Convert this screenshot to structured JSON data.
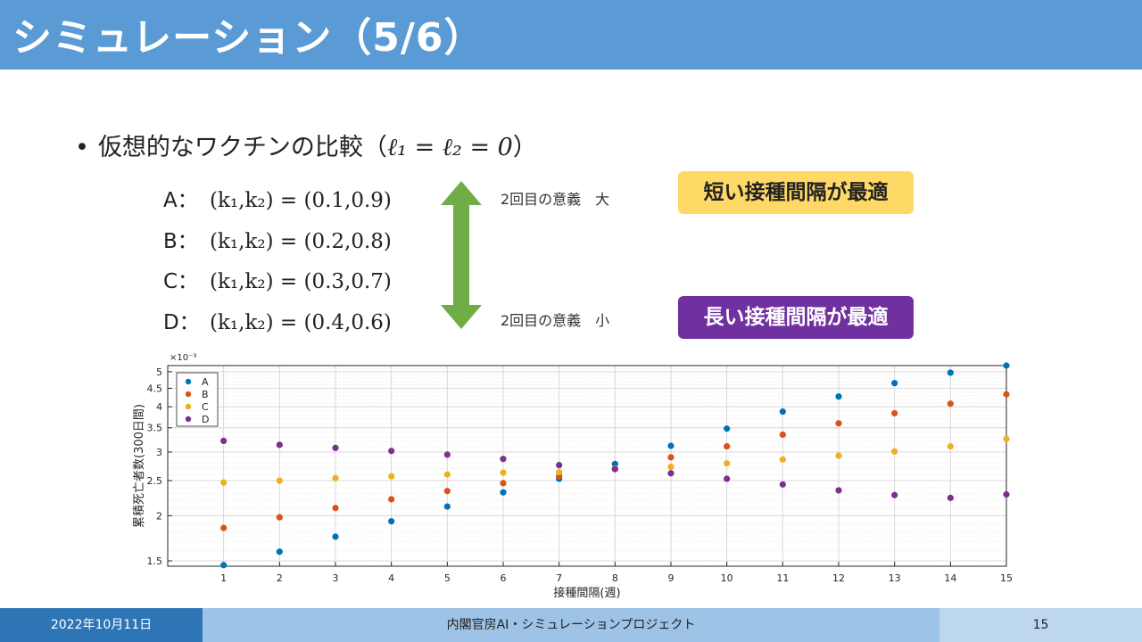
{
  "header": {
    "title": "シミュレーション（5/6）"
  },
  "main": {
    "bullet": {
      "text": "仮想的なワクチンの比較（",
      "math": "ℓ₁ = ℓ₂ = 0",
      "close": "）"
    },
    "vaccines": [
      {
        "label": "A：",
        "equation": "(k₁,k₂) = (0.1,0.9)"
      },
      {
        "label": "B：",
        "equation": "(k₁,k₂) = (0.2,0.8)"
      },
      {
        "label": "C：",
        "equation": "(k₁,k₂) = (0.3,0.7)"
      },
      {
        "label": "D：",
        "equation": "(k₁,k₂) = (0.4,0.6)"
      }
    ],
    "note_top": "2回目の意義　大",
    "note_bottom": "2回目の意義　小",
    "badge_short": "短い接種間隔が最適",
    "badge_long": "長い接種間隔が最適",
    "arrow_color": "#70ad47"
  },
  "chart_data": {
    "type": "scatter",
    "xlabel": "接種間隔(週)",
    "ylabel": "累積死亡者数(300日間)",
    "y_multiplier": "×10⁻³",
    "y_scale": "log",
    "xlim": [
      0,
      15
    ],
    "ylim": [
      1.45,
      5.2
    ],
    "x_ticks": [
      1,
      2,
      3,
      4,
      5,
      6,
      7,
      8,
      9,
      10,
      11,
      12,
      13,
      14,
      15
    ],
    "y_ticks": [
      1.5,
      2,
      2.5,
      3,
      3.5,
      4,
      4.5,
      5
    ],
    "y_tick_labels": [
      "1.5",
      "2",
      "2.5",
      "3",
      "3.5",
      "4",
      "4.5",
      "5"
    ],
    "grid": true,
    "legend_position": "top-left",
    "x": [
      1,
      2,
      3,
      4,
      5,
      6,
      7,
      8,
      9,
      10,
      11,
      12,
      13,
      14,
      15
    ],
    "series": [
      {
        "name": "A",
        "color": "#0072bd",
        "values": [
          1.46,
          1.59,
          1.75,
          1.93,
          2.12,
          2.32,
          2.53,
          2.78,
          3.12,
          3.48,
          3.88,
          4.27,
          4.65,
          4.97,
          5.2
        ]
      },
      {
        "name": "B",
        "color": "#d95319",
        "values": [
          1.85,
          1.98,
          2.1,
          2.22,
          2.34,
          2.46,
          2.57,
          2.7,
          2.9,
          3.11,
          3.35,
          3.6,
          3.84,
          4.08,
          4.33
        ]
      },
      {
        "name": "C",
        "color": "#edb120",
        "values": [
          2.47,
          2.5,
          2.54,
          2.57,
          2.6,
          2.63,
          2.64,
          2.7,
          2.73,
          2.79,
          2.86,
          2.93,
          3.01,
          3.11,
          3.26
        ]
      },
      {
        "name": "D",
        "color": "#7e2f8e",
        "values": [
          3.22,
          3.14,
          3.08,
          3.02,
          2.95,
          2.87,
          2.76,
          2.69,
          2.62,
          2.53,
          2.44,
          2.35,
          2.28,
          2.24,
          2.29
        ]
      }
    ]
  },
  "footer": {
    "date": "2022年10月11日",
    "organization": "内閣官房AI・シミュレーションプロジェクト",
    "page": "15"
  }
}
